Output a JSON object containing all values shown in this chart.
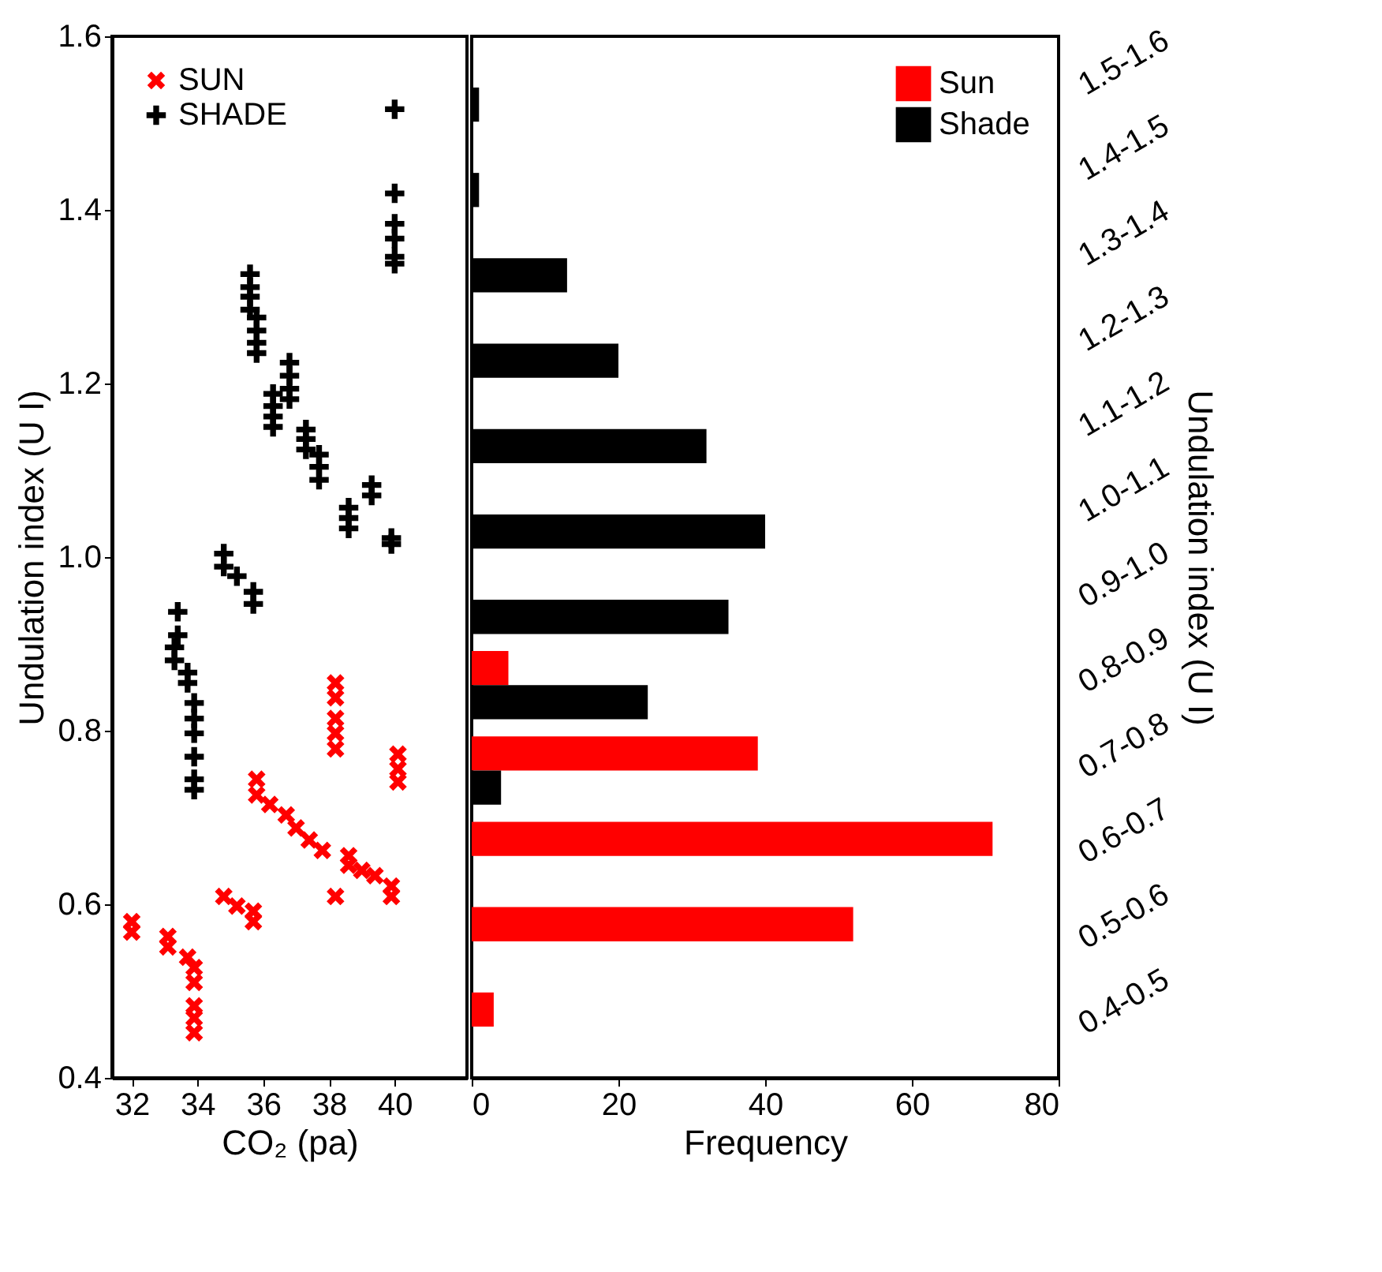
{
  "chart_data": [
    {
      "type": "scatter",
      "xlabel": "CO₂ (pa)",
      "ylabel": "Undulation index (U I)",
      "xlim": [
        31.4,
        42.2
      ],
      "ylim": [
        0.4,
        1.6
      ],
      "xticks": [
        32,
        34,
        36,
        38,
        40
      ],
      "yticks": [
        0.4,
        0.6,
        0.8,
        {
          "value": 1,
          "label": "1.0"
        },
        1.2,
        1.4,
        1.6
      ],
      "grid": false,
      "legend": "top left",
      "series": [
        {
          "name": "SUN",
          "color": "#ff0000",
          "marker": "cross",
          "x": [
            32.0,
            32.0,
            33.1,
            33.1,
            33.7,
            33.9,
            33.9,
            33.9,
            33.9,
            33.9,
            34.8,
            35.2,
            35.7,
            35.7,
            35.8,
            35.8,
            36.2,
            36.7,
            37.0,
            37.4,
            37.8,
            38.2,
            38.2,
            38.2,
            38.2,
            38.2,
            38.2,
            38.6,
            38.6,
            39.0,
            39.4,
            39.9,
            39.9,
            40.1,
            40.1,
            40.1
          ],
          "values": [
            0.58,
            0.568,
            0.563,
            0.551,
            0.539,
            0.527,
            0.51,
            0.483,
            0.469,
            0.452,
            0.609,
            0.598,
            0.592,
            0.58,
            0.744,
            0.726,
            0.715,
            0.703,
            0.688,
            0.674,
            0.662,
            0.855,
            0.838,
            0.814,
            0.797,
            0.779,
            0.609,
            0.656,
            0.645,
            0.639,
            0.633,
            0.621,
            0.609,
            0.773,
            0.756,
            0.741
          ]
        },
        {
          "name": "SHADE",
          "color": "#000000",
          "marker": "plus",
          "x": [
            40.0,
            40.0,
            40.0,
            40.0,
            40.0,
            40.0,
            35.6,
            35.6,
            35.6,
            35.6,
            35.8,
            35.8,
            35.8,
            35.8,
            36.3,
            36.3,
            36.3,
            36.3,
            36.8,
            36.8,
            36.8,
            36.8,
            37.3,
            37.3,
            37.3,
            37.7,
            37.7,
            37.7,
            38.6,
            38.6,
            38.6,
            39.3,
            39.3,
            39.9,
            39.9,
            34.8,
            34.8,
            35.2,
            35.7,
            35.7,
            33.4,
            33.4,
            33.3,
            33.3,
            33.7,
            33.7,
            33.9,
            33.9,
            33.9,
            33.9,
            33.9,
            33.9
          ],
          "values": [
            1.516,
            1.419,
            1.384,
            1.367,
            1.346,
            1.338,
            1.326,
            1.311,
            1.3,
            1.285,
            1.276,
            1.261,
            1.247,
            1.235,
            1.188,
            1.174,
            1.162,
            1.15,
            1.224,
            1.209,
            1.194,
            1.182,
            1.147,
            1.136,
            1.124,
            1.118,
            1.104,
            1.089,
            1.057,
            1.045,
            1.033,
            1.083,
            1.071,
            1.022,
            1.015,
            1.004,
            0.989,
            0.978,
            0.96,
            0.946,
            0.937,
            0.91,
            0.896,
            0.881,
            0.867,
            0.855,
            0.832,
            0.814,
            0.797,
            0.77,
            0.744,
            0.732
          ]
        }
      ]
    },
    {
      "type": "bar",
      "orientation": "horizontal",
      "xlabel": "Frequency",
      "y2label": "Undulation index (U I)",
      "xlim": [
        0,
        80
      ],
      "xticks": [
        0,
        20,
        40,
        60,
        80
      ],
      "grid": false,
      "legend": "top right",
      "categories": [
        "1.5-1.6",
        "1.4-1.5",
        "1.3-1.4",
        "1.2-1.3",
        "1.1-1.2",
        "1.0-1.1",
        "0.9-1.0",
        "0.8-0.9",
        "0.7-0.8",
        "0.6-0.7",
        "0.5-0.6",
        "0.4-0.5"
      ],
      "series": [
        {
          "name": "Sun",
          "color": "#ff0000",
          "values": [
            null,
            null,
            null,
            null,
            null,
            null,
            null,
            5,
            39,
            71,
            52,
            3
          ]
        },
        {
          "name": "Shade",
          "color": "#000000",
          "values": [
            1,
            1,
            13,
            20,
            32,
            40,
            35,
            24,
            4,
            null,
            null,
            null
          ]
        }
      ]
    }
  ]
}
